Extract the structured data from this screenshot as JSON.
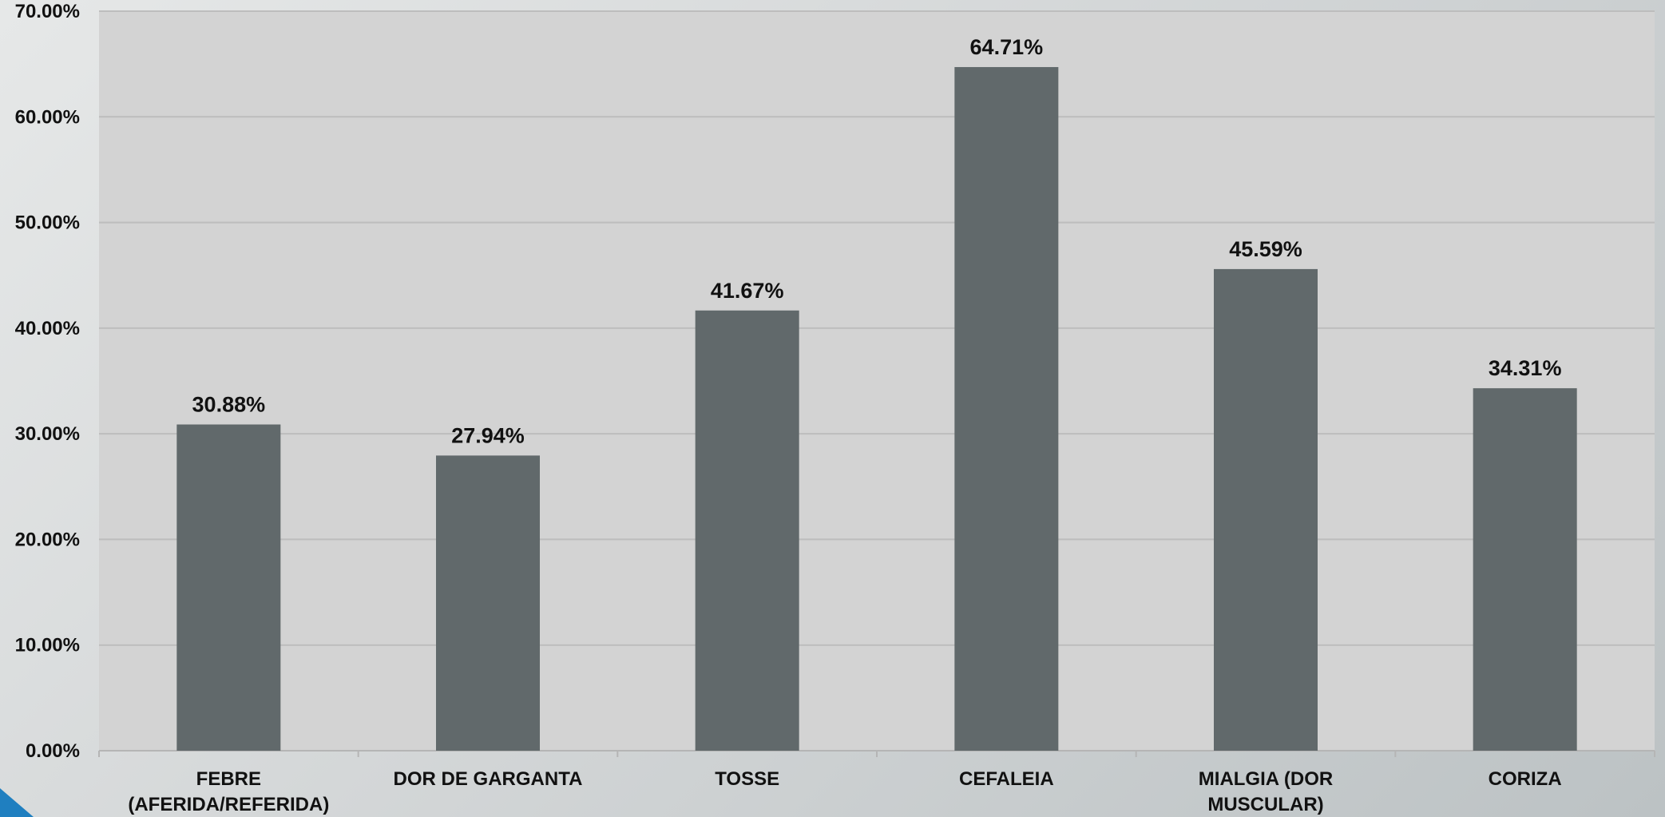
{
  "chart_data": {
    "type": "bar",
    "categories": [
      [
        "FEBRE",
        "(AFERIDA/REFERIDA)"
      ],
      [
        "DOR DE GARGANTA"
      ],
      [
        "TOSSE"
      ],
      [
        "CEFALEIA"
      ],
      [
        "MIALGIA (DOR",
        "MUSCULAR)"
      ],
      [
        "CORIZA"
      ]
    ],
    "values": [
      30.88,
      27.94,
      41.67,
      64.71,
      45.59,
      34.31
    ],
    "data_labels": [
      "30.88%",
      "27.94%",
      "41.67%",
      "64.71%",
      "45.59%",
      "34.31%"
    ],
    "y_ticks": [
      "0.00%",
      "10.00%",
      "20.00%",
      "30.00%",
      "40.00%",
      "50.00%",
      "60.00%",
      "70.00%"
    ],
    "ylim": [
      0,
      70
    ],
    "grid": true,
    "legend": "none",
    "colors": {
      "bar": "#61696b",
      "plot_background": "#d3d3d3",
      "gridline": "#bdbdbd",
      "corner_accent": "#1f7fc0"
    }
  }
}
